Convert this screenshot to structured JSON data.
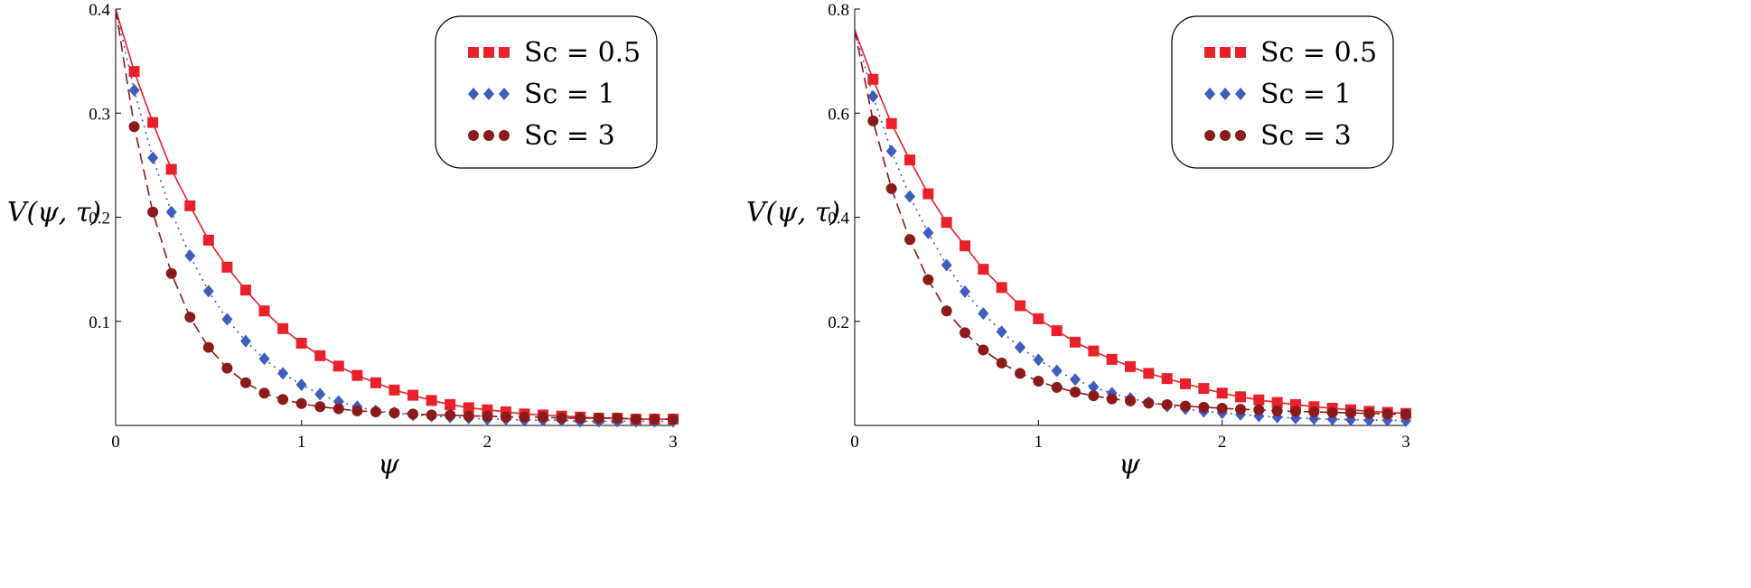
{
  "chart_data": [
    {
      "type": "line",
      "title": "",
      "xlabel": "ψ",
      "ylabel": "V(ψ, τ)",
      "xlim": [
        0,
        3
      ],
      "ylim": [
        0,
        0.4
      ],
      "xticks": [
        "0",
        "1",
        "2",
        "3"
      ],
      "yticks": [
        "0.1",
        "0.2",
        "0.3",
        "0.4"
      ],
      "ytick_values": [
        0.1,
        0.2,
        0.3,
        0.4
      ],
      "grid": false,
      "legend_position": "top-right",
      "x": [
        0,
        0.1,
        0.2,
        0.3,
        0.4,
        0.5,
        0.6,
        0.7,
        0.8,
        0.9,
        1.0,
        1.1,
        1.2,
        1.3,
        1.4,
        1.5,
        1.6,
        1.7,
        1.8,
        1.9,
        2.0,
        2.1,
        2.2,
        2.3,
        2.4,
        2.5,
        2.6,
        2.7,
        2.8,
        2.9,
        3.0
      ],
      "series": [
        {
          "name": "Sc = 0.5",
          "marker": "square",
          "line": "solid",
          "color": "#e8202a",
          "values": [
            0.4,
            0.34,
            0.291,
            0.246,
            0.211,
            0.178,
            0.152,
            0.13,
            0.11,
            0.093,
            0.079,
            0.067,
            0.057,
            0.048,
            0.041,
            0.034,
            0.029,
            0.024,
            0.02,
            0.017,
            0.015,
            0.013,
            0.011,
            0.01,
            0.009,
            0.008,
            0.007,
            0.007,
            0.006,
            0.006,
            0.006
          ]
        },
        {
          "name": "Sc = 1",
          "marker": "diamond",
          "line": "dotted",
          "color": "#3f5cbf",
          "values": [
            0.4,
            0.322,
            0.257,
            0.205,
            0.163,
            0.129,
            0.102,
            0.081,
            0.064,
            0.05,
            0.039,
            0.03,
            0.023,
            0.018,
            0.014,
            0.012,
            0.01,
            0.009,
            0.008,
            0.007,
            0.006,
            0.006,
            0.005,
            0.005,
            0.005,
            0.004,
            0.004,
            0.004,
            0.004,
            0.004,
            0.004
          ]
        },
        {
          "name": "Sc = 3",
          "marker": "circle",
          "line": "dashed",
          "color": "#8b1a1a",
          "values": [
            0.4,
            0.287,
            0.205,
            0.146,
            0.104,
            0.075,
            0.055,
            0.041,
            0.031,
            0.025,
            0.021,
            0.018,
            0.016,
            0.014,
            0.013,
            0.012,
            0.011,
            0.01,
            0.01,
            0.009,
            0.009,
            0.008,
            0.008,
            0.008,
            0.007,
            0.007,
            0.007,
            0.007,
            0.006,
            0.006,
            0.006
          ]
        }
      ]
    },
    {
      "type": "line",
      "title": "",
      "xlabel": "ψ",
      "ylabel": "V(ψ, τ)",
      "xlim": [
        0,
        3
      ],
      "ylim": [
        0,
        0.8
      ],
      "xticks": [
        "0",
        "1",
        "2",
        "3"
      ],
      "yticks": [
        "0.2",
        "0.4",
        "0.6",
        "0.8"
      ],
      "ytick_values": [
        0.2,
        0.4,
        0.6,
        0.8
      ],
      "grid": false,
      "legend_position": "top-right",
      "x": [
        0,
        0.1,
        0.2,
        0.3,
        0.4,
        0.5,
        0.6,
        0.7,
        0.8,
        0.9,
        1.0,
        1.1,
        1.2,
        1.3,
        1.4,
        1.5,
        1.6,
        1.7,
        1.8,
        1.9,
        2.0,
        2.1,
        2.2,
        2.3,
        2.4,
        2.5,
        2.6,
        2.7,
        2.8,
        2.9,
        3.0
      ],
      "series": [
        {
          "name": "Sc = 0.5",
          "marker": "square",
          "line": "solid",
          "color": "#e8202a",
          "values": [
            0.76,
            0.665,
            0.58,
            0.51,
            0.445,
            0.39,
            0.345,
            0.3,
            0.265,
            0.23,
            0.205,
            0.182,
            0.16,
            0.143,
            0.127,
            0.113,
            0.1,
            0.09,
            0.08,
            0.071,
            0.062,
            0.055,
            0.049,
            0.044,
            0.04,
            0.036,
            0.033,
            0.03,
            0.027,
            0.025,
            0.023
          ]
        },
        {
          "name": "Sc = 1",
          "marker": "diamond",
          "line": "dotted",
          "color": "#3f5cbf",
          "values": [
            0.76,
            0.632,
            0.527,
            0.44,
            0.37,
            0.308,
            0.257,
            0.215,
            0.18,
            0.15,
            0.126,
            0.105,
            0.088,
            0.074,
            0.062,
            0.052,
            0.044,
            0.037,
            0.032,
            0.027,
            0.024,
            0.021,
            0.018,
            0.016,
            0.014,
            0.013,
            0.012,
            0.011,
            0.01,
            0.01,
            0.009
          ]
        },
        {
          "name": "Sc = 3",
          "marker": "circle",
          "line": "dashed",
          "color": "#8b1a1a",
          "values": [
            0.76,
            0.585,
            0.455,
            0.357,
            0.28,
            0.22,
            0.178,
            0.145,
            0.12,
            0.1,
            0.085,
            0.073,
            0.064,
            0.057,
            0.051,
            0.047,
            0.043,
            0.04,
            0.037,
            0.035,
            0.033,
            0.031,
            0.03,
            0.028,
            0.027,
            0.026,
            0.025,
            0.024,
            0.023,
            0.022,
            0.021
          ]
        }
      ]
    }
  ]
}
